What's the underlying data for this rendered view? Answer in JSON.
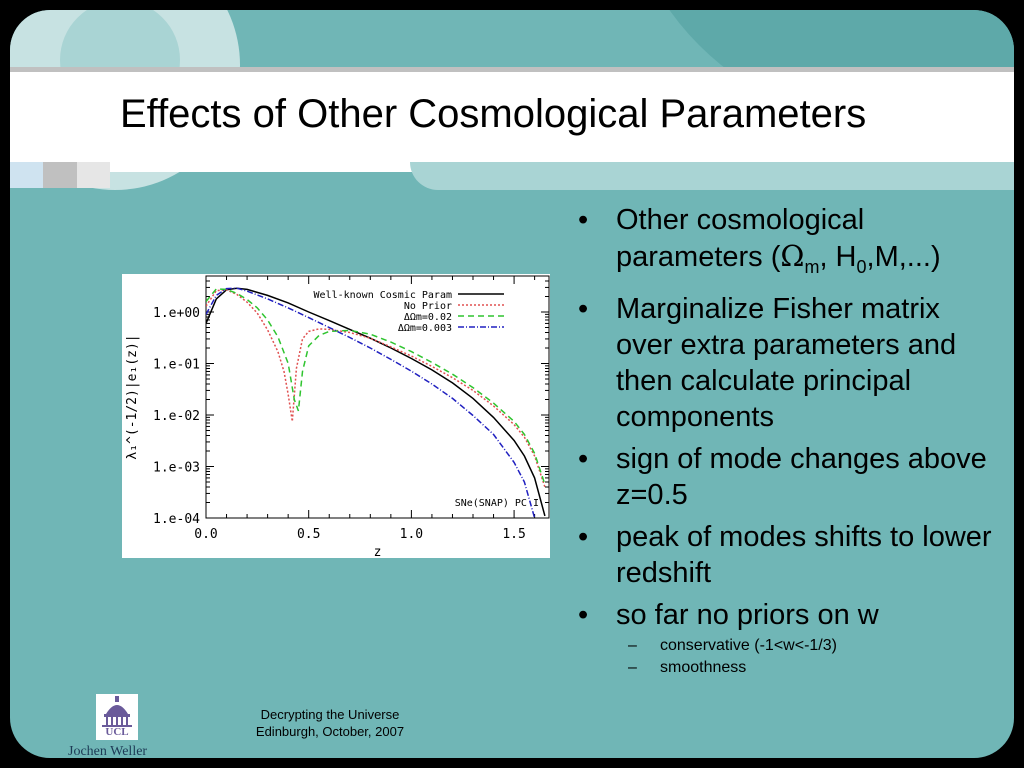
{
  "slide": {
    "title": "Effects of Other Cosmological Parameters",
    "colors": {
      "background": "#70b6b6",
      "accent_dark": "#5aa3a3",
      "title_band": "#ffffff"
    }
  },
  "bullets": [
    {
      "parts": [
        "Other cosmological parameters (",
        "Ω",
        "m",
        ", H",
        "0",
        ",M,...)"
      ]
    },
    {
      "text": "Marginalize Fisher matrix over extra parameters and then calculate principal components"
    },
    {
      "text": "sign of mode changes above z=0.5"
    },
    {
      "text": "peak of modes shifts to lower redshift"
    },
    {
      "text": "so far no priors on w"
    }
  ],
  "sub_bullets": [
    {
      "text": "conservative (-1<w<-1/3)"
    },
    {
      "text": "smoothness"
    }
  ],
  "bullet_marker": "•",
  "sub_bullet_marker": "–",
  "footer": {
    "line1": "Decrypting the Universe",
    "line2": "Edinburgh, October, 2007",
    "author": "Jochen Weller",
    "logo_text": "UCL"
  },
  "chart_data": {
    "type": "line",
    "xlabel": "z",
    "ylabel": "λ₁^(-1/2)|e₁(z)|",
    "yscale": "log",
    "xlim": [
      0.0,
      1.67
    ],
    "ylim": [
      0.0001,
      5
    ],
    "xticks": [
      "0.0",
      "0.5",
      "1.0",
      "1.5"
    ],
    "xtick_values": [
      0.0,
      0.5,
      1.0,
      1.5
    ],
    "yticks": [
      "1.e+00",
      "1.e-01",
      "1.e-02",
      "1.e-03",
      "1.e-04"
    ],
    "ytick_values": [
      1,
      0.1,
      0.01,
      0.001,
      0.0001
    ],
    "legend_position": "top-right",
    "annotation": "SNe(SNAP) PC I",
    "series": [
      {
        "name": "Well-known Cosmic Param",
        "color": "#000000",
        "dash": "",
        "x": [
          0.0,
          0.05,
          0.1,
          0.15,
          0.2,
          0.3,
          0.4,
          0.5,
          0.6,
          0.7,
          0.8,
          0.9,
          1.0,
          1.1,
          1.2,
          1.3,
          1.4,
          1.5,
          1.55,
          1.6,
          1.65
        ],
        "y": [
          0.6,
          1.8,
          2.7,
          2.9,
          2.75,
          2.1,
          1.5,
          1.0,
          0.68,
          0.46,
          0.31,
          0.2,
          0.125,
          0.075,
          0.042,
          0.021,
          0.009,
          0.0032,
          0.0016,
          0.0006,
          0.00011
        ]
      },
      {
        "name": "No Prior",
        "color": "#e05050",
        "dash": "2,2",
        "x": [
          0.0,
          0.05,
          0.1,
          0.15,
          0.2,
          0.25,
          0.3,
          0.35,
          0.38,
          0.4,
          0.42,
          0.44,
          0.47,
          0.5,
          0.55,
          0.6,
          0.7,
          0.8,
          0.9,
          1.0,
          1.1,
          1.2,
          1.3,
          1.4,
          1.5,
          1.55,
          1.6,
          1.65
        ],
        "y": [
          1.3,
          2.6,
          2.7,
          2.2,
          1.55,
          0.95,
          0.45,
          0.17,
          0.07,
          0.025,
          0.0075,
          0.08,
          0.3,
          0.42,
          0.47,
          0.46,
          0.4,
          0.31,
          0.21,
          0.14,
          0.088,
          0.053,
          0.03,
          0.015,
          0.0065,
          0.0037,
          0.0016,
          0.0004
        ]
      },
      {
        "name": "ΔΩm=0.02",
        "color": "#2fc42f",
        "dash": "6,4",
        "x": [
          0.0,
          0.05,
          0.1,
          0.15,
          0.2,
          0.25,
          0.3,
          0.35,
          0.4,
          0.43,
          0.45,
          0.47,
          0.5,
          0.55,
          0.6,
          0.7,
          0.8,
          0.9,
          1.0,
          1.1,
          1.2,
          1.3,
          1.4,
          1.5,
          1.55,
          1.6,
          1.65
        ],
        "y": [
          1.6,
          2.8,
          2.75,
          2.3,
          1.75,
          1.2,
          0.7,
          0.33,
          0.1,
          0.02,
          0.012,
          0.07,
          0.22,
          0.35,
          0.42,
          0.44,
          0.37,
          0.26,
          0.17,
          0.105,
          0.062,
          0.034,
          0.017,
          0.0075,
          0.0042,
          0.0018,
          0.00045
        ]
      },
      {
        "name": "ΔΩm=0.003",
        "color": "#2020c0",
        "dash": "6,2,1,2",
        "x": [
          0.0,
          0.05,
          0.1,
          0.15,
          0.2,
          0.3,
          0.4,
          0.5,
          0.6,
          0.7,
          0.8,
          0.9,
          1.0,
          1.1,
          1.2,
          1.3,
          1.4,
          1.5,
          1.55,
          1.6
        ],
        "y": [
          0.9,
          2.1,
          2.85,
          2.9,
          2.55,
          1.8,
          1.2,
          0.78,
          0.5,
          0.32,
          0.2,
          0.12,
          0.071,
          0.04,
          0.021,
          0.0098,
          0.0042,
          0.0012,
          0.0005,
          0.0001
        ]
      }
    ]
  }
}
